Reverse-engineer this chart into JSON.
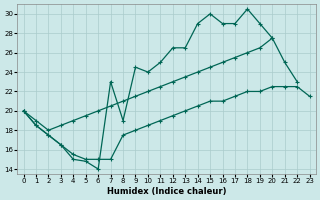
{
  "background_color": "#cce8e8",
  "grid_color": "#aacccc",
  "line_color": "#006655",
  "xlabel": "Humidex (Indice chaleur)",
  "xlim_min": -0.5,
  "xlim_max": 23.5,
  "ylim_min": 13.5,
  "ylim_max": 31.0,
  "yticks": [
    14,
    16,
    18,
    20,
    22,
    24,
    26,
    28,
    30
  ],
  "xticks": [
    0,
    1,
    2,
    3,
    4,
    5,
    6,
    7,
    8,
    9,
    10,
    11,
    12,
    13,
    14,
    15,
    16,
    17,
    18,
    19,
    20,
    21,
    22,
    23
  ],
  "series": [
    {
      "x": [
        0,
        1,
        2,
        3,
        4,
        5,
        6,
        7,
        8,
        9,
        10,
        11,
        12,
        13,
        14,
        15,
        16,
        17,
        18,
        19,
        20
      ],
      "y": [
        20.0,
        18.5,
        17.5,
        16.5,
        15.0,
        14.8,
        14.0,
        23.0,
        19.0,
        24.5,
        24.0,
        25.0,
        26.5,
        26.5,
        29.0,
        30.0,
        29.0,
        29.0,
        30.5,
        29.0,
        27.5
      ]
    },
    {
      "x": [
        0,
        1,
        2,
        3,
        4,
        5,
        6,
        7,
        8,
        9,
        10,
        11,
        12,
        13,
        14,
        15,
        16,
        17,
        18,
        19,
        20,
        21,
        22
      ],
      "y": [
        20.0,
        19.0,
        18.0,
        18.5,
        19.0,
        19.5,
        20.0,
        20.5,
        21.0,
        21.5,
        22.0,
        22.5,
        23.0,
        23.5,
        24.0,
        24.5,
        25.0,
        25.5,
        26.0,
        26.5,
        27.5,
        25.0,
        23.0
      ]
    },
    {
      "x": [
        0,
        1,
        2,
        3,
        4,
        5,
        6,
        7,
        8,
        9,
        10,
        11,
        12,
        13,
        14,
        15,
        16,
        17,
        18,
        19,
        20,
        21,
        22,
        23
      ],
      "y": [
        20.0,
        18.5,
        17.5,
        16.5,
        15.5,
        15.0,
        15.0,
        15.0,
        17.5,
        18.0,
        18.5,
        19.0,
        19.5,
        20.0,
        20.5,
        21.0,
        21.0,
        21.5,
        22.0,
        22.0,
        22.5,
        22.5,
        22.5,
        21.5
      ]
    }
  ]
}
